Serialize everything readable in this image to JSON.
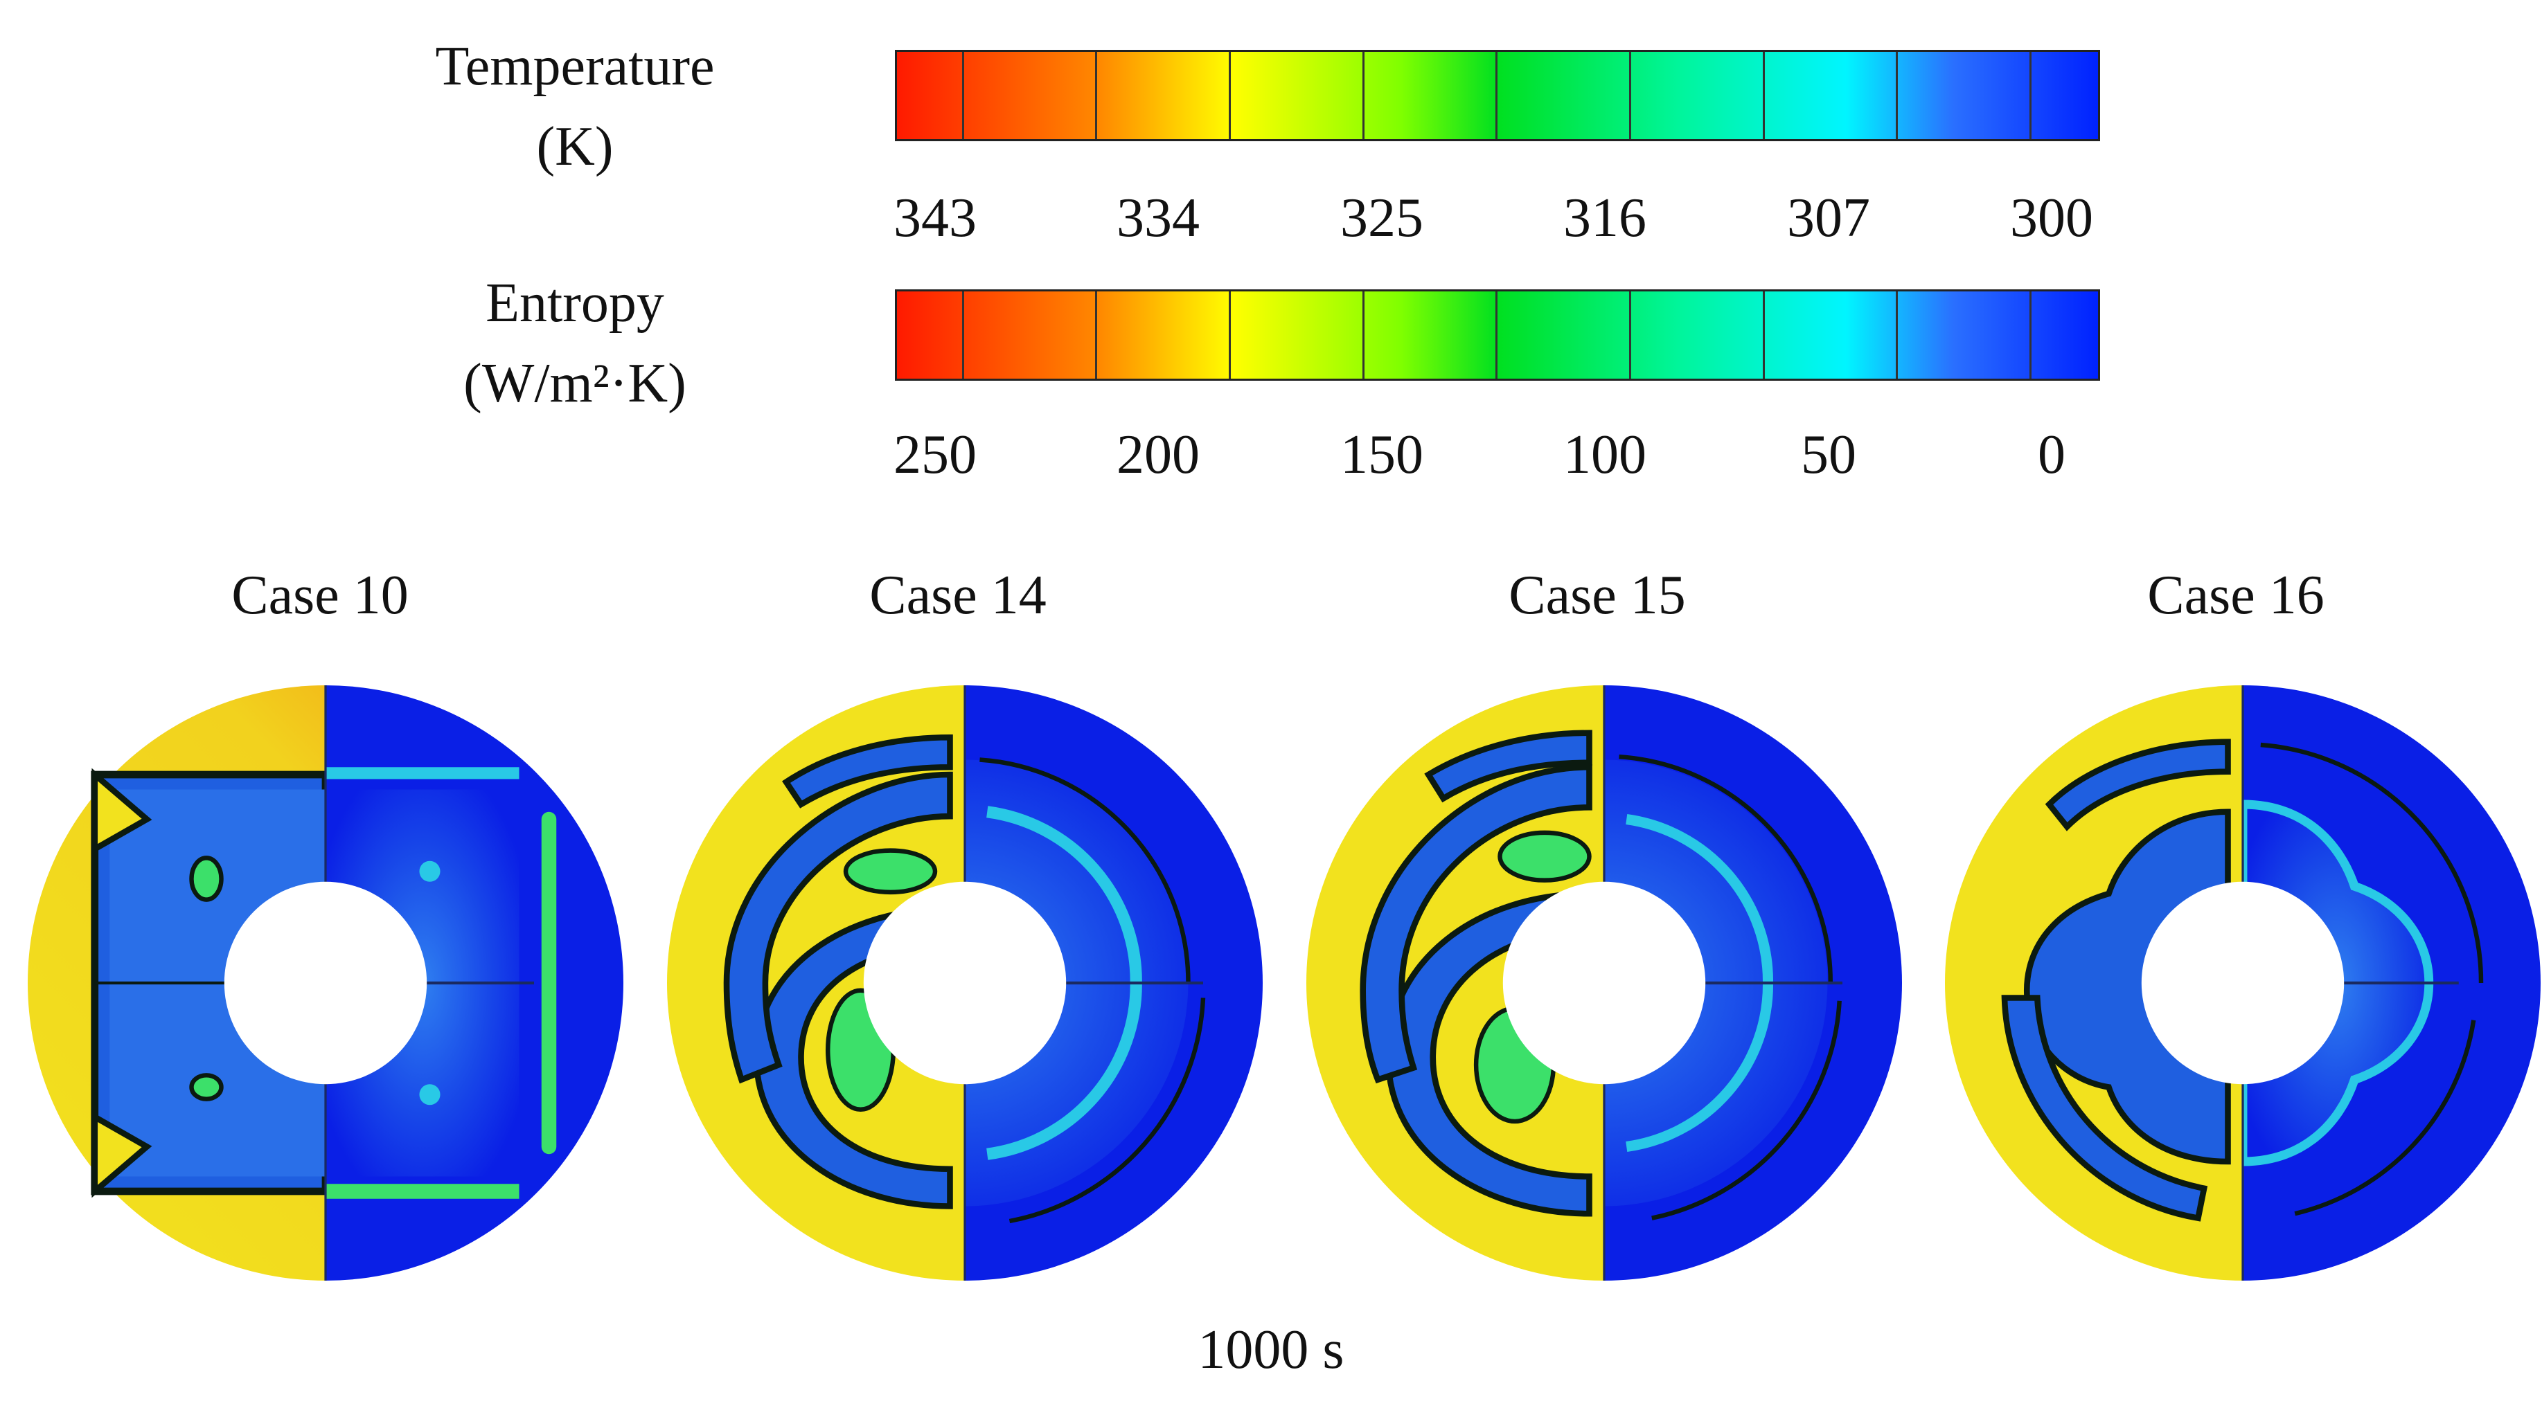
{
  "legends": {
    "temperature": {
      "title_line1": "Temperature",
      "title_line2": "(K)",
      "ticks": [
        "343",
        "334",
        "325",
        "316",
        "307",
        "300"
      ]
    },
    "entropy": {
      "title_line1": "Entropy",
      "title_line2": "(W/m²·K)",
      "ticks": [
        "250",
        "200",
        "150",
        "100",
        "50",
        "0"
      ]
    }
  },
  "cases": [
    {
      "label": "Case 10"
    },
    {
      "label": "Case 14"
    },
    {
      "label": "Case 15"
    },
    {
      "label": "Case 16"
    }
  ],
  "time_label": "1000 s",
  "colors": {
    "yellow": "#f2e21e",
    "blue": "#0a1fe6",
    "mid_blue": "#1f5fe0",
    "green": "#3ce06a",
    "dark": "#0b1a10"
  }
}
